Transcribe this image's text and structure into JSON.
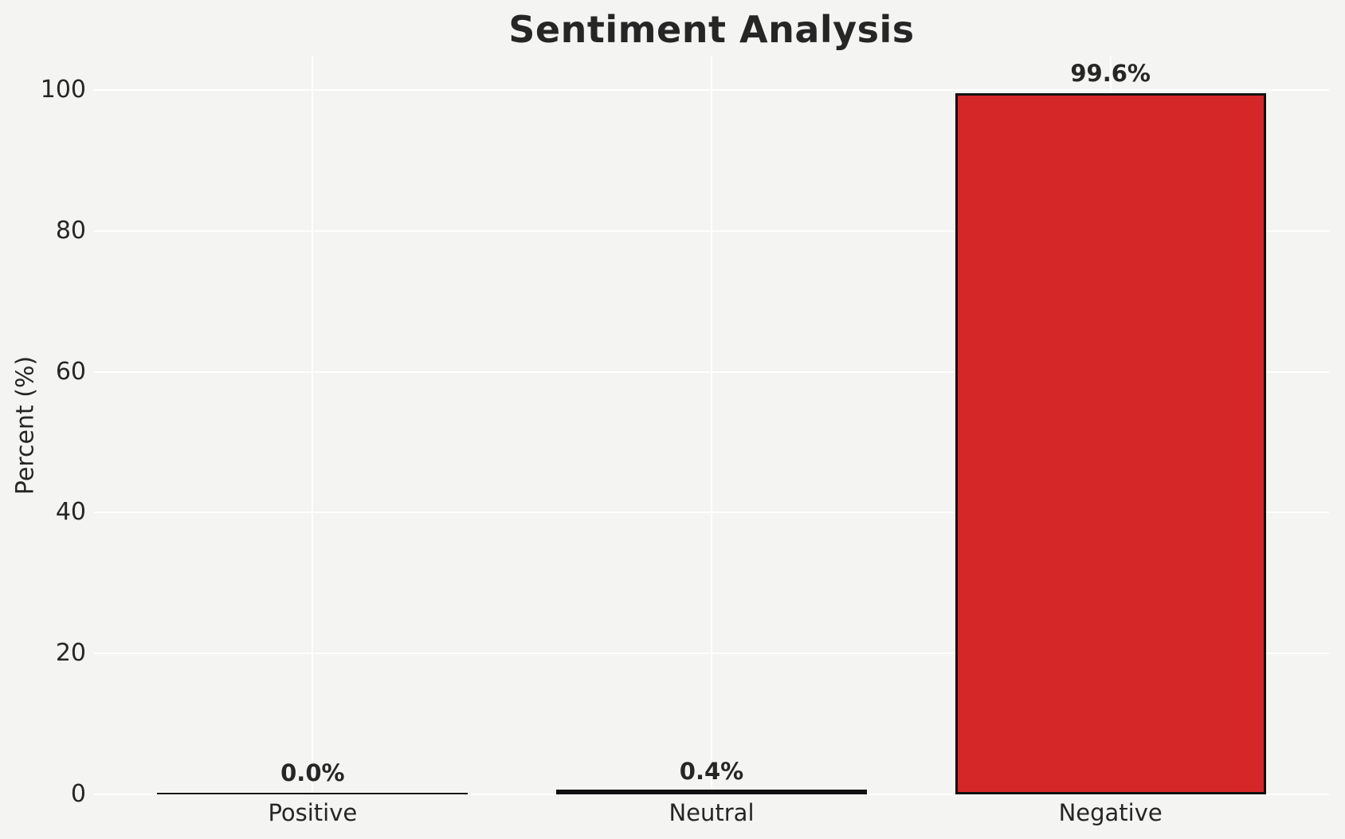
{
  "chart_data": {
    "type": "bar",
    "title": "Sentiment Analysis",
    "xlabel": "",
    "ylabel": "Percent (%)",
    "categories": [
      "Positive",
      "Neutral",
      "Negative"
    ],
    "values": [
      0.0,
      0.4,
      99.6
    ],
    "value_labels": [
      "0.0%",
      "0.4%",
      "99.6%"
    ],
    "yticks": [
      0,
      20,
      40,
      60,
      80,
      100
    ],
    "ylim": [
      0,
      105
    ],
    "grid": true,
    "legend": false,
    "colors": {
      "background": "#f4f4f3",
      "gridline": "#ffffff",
      "bar_fills": [
        "none",
        "none",
        "#d62728"
      ],
      "bar_edge": "#111111",
      "text": "#262626"
    }
  }
}
